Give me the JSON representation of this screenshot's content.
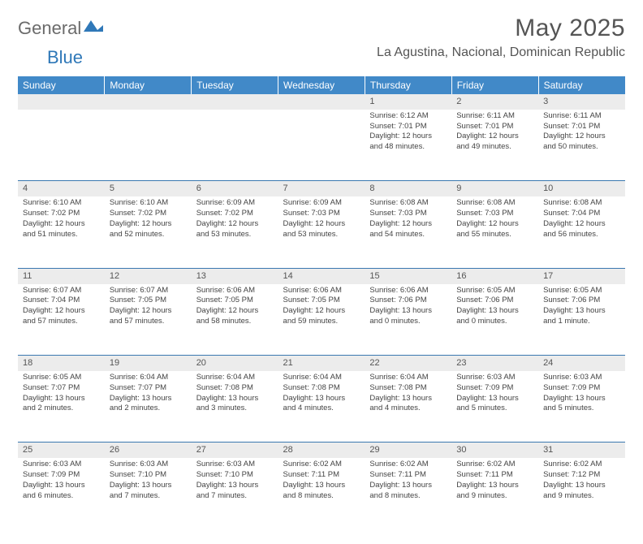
{
  "brand": {
    "text1": "General",
    "text2": "Blue"
  },
  "title": "May 2025",
  "location": "La Agustina, Nacional, Dominican Republic",
  "colors": {
    "header_bg": "#4189c8",
    "header_text": "#ffffff",
    "rule": "#3a78b0",
    "daynum_bg": "#ececec",
    "body_text": "#444444",
    "title_text": "#555555"
  },
  "weekdays": [
    "Sunday",
    "Monday",
    "Tuesday",
    "Wednesday",
    "Thursday",
    "Friday",
    "Saturday"
  ],
  "weeks": [
    [
      null,
      null,
      null,
      null,
      {
        "n": "1",
        "sr": "6:12 AM",
        "ss": "7:01 PM",
        "dl1": "Daylight: 12 hours",
        "dl2": "and 48 minutes."
      },
      {
        "n": "2",
        "sr": "6:11 AM",
        "ss": "7:01 PM",
        "dl1": "Daylight: 12 hours",
        "dl2": "and 49 minutes."
      },
      {
        "n": "3",
        "sr": "6:11 AM",
        "ss": "7:01 PM",
        "dl1": "Daylight: 12 hours",
        "dl2": "and 50 minutes."
      }
    ],
    [
      {
        "n": "4",
        "sr": "6:10 AM",
        "ss": "7:02 PM",
        "dl1": "Daylight: 12 hours",
        "dl2": "and 51 minutes."
      },
      {
        "n": "5",
        "sr": "6:10 AM",
        "ss": "7:02 PM",
        "dl1": "Daylight: 12 hours",
        "dl2": "and 52 minutes."
      },
      {
        "n": "6",
        "sr": "6:09 AM",
        "ss": "7:02 PM",
        "dl1": "Daylight: 12 hours",
        "dl2": "and 53 minutes."
      },
      {
        "n": "7",
        "sr": "6:09 AM",
        "ss": "7:03 PM",
        "dl1": "Daylight: 12 hours",
        "dl2": "and 53 minutes."
      },
      {
        "n": "8",
        "sr": "6:08 AM",
        "ss": "7:03 PM",
        "dl1": "Daylight: 12 hours",
        "dl2": "and 54 minutes."
      },
      {
        "n": "9",
        "sr": "6:08 AM",
        "ss": "7:03 PM",
        "dl1": "Daylight: 12 hours",
        "dl2": "and 55 minutes."
      },
      {
        "n": "10",
        "sr": "6:08 AM",
        "ss": "7:04 PM",
        "dl1": "Daylight: 12 hours",
        "dl2": "and 56 minutes."
      }
    ],
    [
      {
        "n": "11",
        "sr": "6:07 AM",
        "ss": "7:04 PM",
        "dl1": "Daylight: 12 hours",
        "dl2": "and 57 minutes."
      },
      {
        "n": "12",
        "sr": "6:07 AM",
        "ss": "7:05 PM",
        "dl1": "Daylight: 12 hours",
        "dl2": "and 57 minutes."
      },
      {
        "n": "13",
        "sr": "6:06 AM",
        "ss": "7:05 PM",
        "dl1": "Daylight: 12 hours",
        "dl2": "and 58 minutes."
      },
      {
        "n": "14",
        "sr": "6:06 AM",
        "ss": "7:05 PM",
        "dl1": "Daylight: 12 hours",
        "dl2": "and 59 minutes."
      },
      {
        "n": "15",
        "sr": "6:06 AM",
        "ss": "7:06 PM",
        "dl1": "Daylight: 13 hours",
        "dl2": "and 0 minutes."
      },
      {
        "n": "16",
        "sr": "6:05 AM",
        "ss": "7:06 PM",
        "dl1": "Daylight: 13 hours",
        "dl2": "and 0 minutes."
      },
      {
        "n": "17",
        "sr": "6:05 AM",
        "ss": "7:06 PM",
        "dl1": "Daylight: 13 hours",
        "dl2": "and 1 minute."
      }
    ],
    [
      {
        "n": "18",
        "sr": "6:05 AM",
        "ss": "7:07 PM",
        "dl1": "Daylight: 13 hours",
        "dl2": "and 2 minutes."
      },
      {
        "n": "19",
        "sr": "6:04 AM",
        "ss": "7:07 PM",
        "dl1": "Daylight: 13 hours",
        "dl2": "and 2 minutes."
      },
      {
        "n": "20",
        "sr": "6:04 AM",
        "ss": "7:08 PM",
        "dl1": "Daylight: 13 hours",
        "dl2": "and 3 minutes."
      },
      {
        "n": "21",
        "sr": "6:04 AM",
        "ss": "7:08 PM",
        "dl1": "Daylight: 13 hours",
        "dl2": "and 4 minutes."
      },
      {
        "n": "22",
        "sr": "6:04 AM",
        "ss": "7:08 PM",
        "dl1": "Daylight: 13 hours",
        "dl2": "and 4 minutes."
      },
      {
        "n": "23",
        "sr": "6:03 AM",
        "ss": "7:09 PM",
        "dl1": "Daylight: 13 hours",
        "dl2": "and 5 minutes."
      },
      {
        "n": "24",
        "sr": "6:03 AM",
        "ss": "7:09 PM",
        "dl1": "Daylight: 13 hours",
        "dl2": "and 5 minutes."
      }
    ],
    [
      {
        "n": "25",
        "sr": "6:03 AM",
        "ss": "7:09 PM",
        "dl1": "Daylight: 13 hours",
        "dl2": "and 6 minutes."
      },
      {
        "n": "26",
        "sr": "6:03 AM",
        "ss": "7:10 PM",
        "dl1": "Daylight: 13 hours",
        "dl2": "and 7 minutes."
      },
      {
        "n": "27",
        "sr": "6:03 AM",
        "ss": "7:10 PM",
        "dl1": "Daylight: 13 hours",
        "dl2": "and 7 minutes."
      },
      {
        "n": "28",
        "sr": "6:02 AM",
        "ss": "7:11 PM",
        "dl1": "Daylight: 13 hours",
        "dl2": "and 8 minutes."
      },
      {
        "n": "29",
        "sr": "6:02 AM",
        "ss": "7:11 PM",
        "dl1": "Daylight: 13 hours",
        "dl2": "and 8 minutes."
      },
      {
        "n": "30",
        "sr": "6:02 AM",
        "ss": "7:11 PM",
        "dl1": "Daylight: 13 hours",
        "dl2": "and 9 minutes."
      },
      {
        "n": "31",
        "sr": "6:02 AM",
        "ss": "7:12 PM",
        "dl1": "Daylight: 13 hours",
        "dl2": "and 9 minutes."
      }
    ]
  ]
}
